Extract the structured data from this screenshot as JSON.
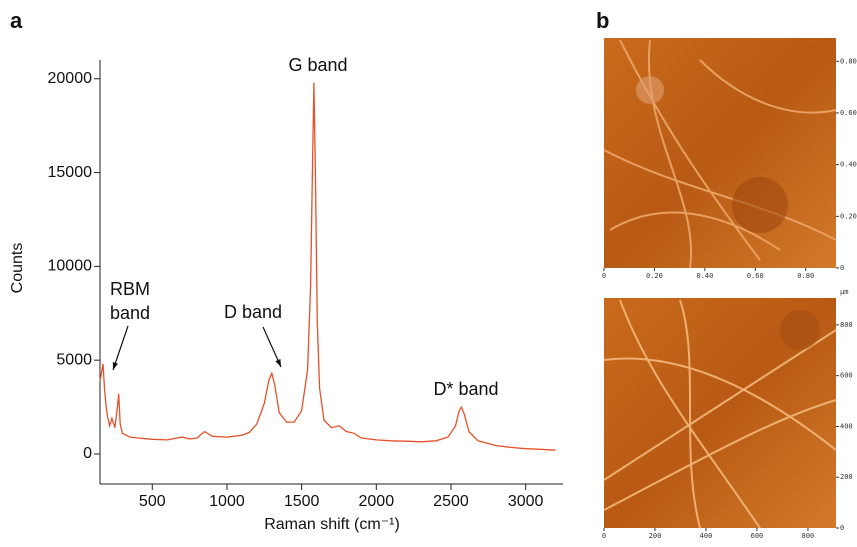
{
  "panel_labels": [
    "a",
    "b"
  ],
  "chart_data": [
    {
      "type": "line",
      "xlabel": "Raman shift (cm⁻¹)",
      "ylabel": "Counts",
      "xlim": [
        150,
        3250
      ],
      "ylim": [
        -1600,
        21000
      ],
      "xticks": [
        500,
        1000,
        1500,
        2000,
        2500,
        3000
      ],
      "yticks": [
        0,
        5000,
        10000,
        15000,
        20000
      ],
      "annotations": [
        {
          "text": [
            "RBM",
            "band"
          ]
        },
        {
          "text": [
            "D band"
          ]
        },
        {
          "text": [
            "G band"
          ]
        },
        {
          "text": [
            "D* band"
          ]
        }
      ],
      "series": [
        {
          "color": "#e4512b",
          "x": [
            150,
            160,
            170,
            180,
            190,
            200,
            215,
            230,
            250,
            265,
            275,
            285,
            300,
            350,
            400,
            500,
            600,
            700,
            750,
            800,
            850,
            900,
            1000,
            1100,
            1150,
            1200,
            1250,
            1280,
            1300,
            1320,
            1350,
            1400,
            1450,
            1500,
            1540,
            1560,
            1572,
            1582,
            1592,
            1605,
            1620,
            1650,
            1700,
            1750,
            1800,
            1850,
            1900,
            2000,
            2100,
            2200,
            2300,
            2400,
            2480,
            2530,
            2555,
            2570,
            2590,
            2620,
            2680,
            2800,
            2900,
            3000,
            3100,
            3200
          ],
          "values": [
            3900,
            4300,
            4800,
            3500,
            2600,
            2000,
            1500,
            1900,
            1400,
            2400,
            3200,
            1600,
            1100,
            900,
            850,
            780,
            750,
            900,
            800,
            850,
            1200,
            950,
            900,
            1000,
            1150,
            1600,
            2700,
            3900,
            4300,
            3700,
            2200,
            1700,
            1700,
            2300,
            4500,
            9000,
            15000,
            19800,
            15000,
            7000,
            3500,
            1800,
            1400,
            1500,
            1200,
            1100,
            850,
            750,
            700,
            680,
            650,
            700,
            900,
            1500,
            2300,
            2500,
            2100,
            1200,
            700,
            450,
            350,
            280,
            250,
            200
          ]
        }
      ]
    },
    {
      "type": "image",
      "xlim": [
        0,
        0.92
      ],
      "ylim": [
        0,
        0.89
      ],
      "xticks": [
        0,
        {
          "value": 0.2,
          "label": "0.20"
        },
        {
          "value": 0.4,
          "label": "0.40"
        },
        {
          "value": 0.6,
          "label": "0.60"
        },
        {
          "value": 0.8,
          "label": "0.80"
        }
      ],
      "yticks": [
        0,
        {
          "value": 0.2,
          "label": "0.20"
        },
        {
          "value": 0.4,
          "label": "0.40"
        },
        {
          "value": 0.6,
          "label": "0.60"
        },
        {
          "value": 0.8,
          "label": "0.80"
        }
      ]
    },
    {
      "type": "image",
      "unit": "µm",
      "xlim": [
        0,
        910
      ],
      "ylim": [
        0,
        906
      ],
      "xticks": [
        0,
        200,
        400,
        600,
        800
      ],
      "yticks": [
        0,
        200,
        400,
        600,
        800
      ]
    }
  ]
}
